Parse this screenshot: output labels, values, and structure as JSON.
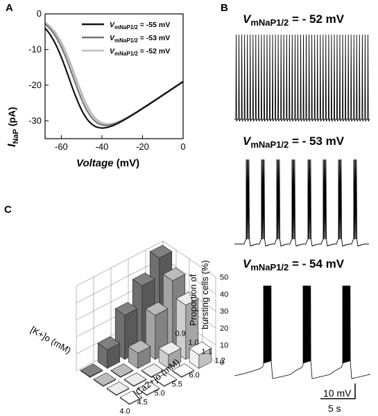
{
  "panels": {
    "a": {
      "letter": "A"
    },
    "b": {
      "letter": "B"
    },
    "c": {
      "letter": "C"
    }
  },
  "chart_data": [
    {
      "panel": "A",
      "type": "line",
      "ylabel_main": "I",
      "ylabel_sub": "NaP",
      "ylabel_unit": " (pA)",
      "xlabel_main": "Voltage",
      "xlabel_unit": " (mV)",
      "xlim": [
        -68,
        0
      ],
      "ylim": [
        -35,
        0
      ],
      "xticks": [
        -60,
        -40,
        -20,
        0
      ],
      "yticks": [
        0,
        -10,
        -20,
        -30
      ],
      "legend": {
        "placement": "top-right",
        "prefix": "V",
        "sub": "mNaP1/2",
        "labels": [
          " = -55 mV",
          " = -53 mV",
          " = -52 mV"
        ]
      },
      "series": [
        {
          "name": "V_mNaP1/2 = -55 mV",
          "color": "#111111",
          "half": -55
        },
        {
          "name": "V_mNaP1/2 = -53 mV",
          "color": "#777777",
          "half": -53
        },
        {
          "name": "V_mNaP1/2 = -52 mV",
          "color": "#bdbdbd",
          "half": -52
        }
      ],
      "x": [
        -68,
        -65,
        -62,
        -60,
        -58,
        -56,
        -54,
        -52,
        -50,
        -48,
        -46,
        -44,
        -42,
        -40,
        -35,
        -30,
        -25,
        -20,
        -15,
        -10,
        -5,
        0
      ]
    },
    {
      "panel": "B",
      "type": "line",
      "traces": [
        {
          "title_prefix": "V",
          "title_sub": "mNaP1/2",
          "title_value": " = - 52 mV",
          "pattern": "tonic spiking"
        },
        {
          "title_prefix": "V",
          "title_sub": "mNaP1/2",
          "title_value": " = - 53 mV",
          "pattern": "bursting"
        },
        {
          "title_prefix": "V",
          "title_sub": "mNaP1/2",
          "title_value": " = - 54 mV",
          "pattern": "bursting"
        }
      ],
      "scalebar": {
        "voltage": "10 mV",
        "time": "5 s"
      }
    },
    {
      "panel": "C",
      "type": "bar3d",
      "zlabel_line1": "Proportion of",
      "zlabel_line2": "bursting cells (%)",
      "xlabel": "[Ca2+]o (mM)",
      "ylabel": "[K+]o (mM)",
      "zlim": [
        0,
        50
      ],
      "zticks": [
        0,
        10,
        20,
        30,
        40,
        50
      ],
      "ca_levels": [
        0.9,
        1.0,
        1.1,
        1.2
      ],
      "ca_tick_labels": [
        "0.9",
        "1.0",
        "1.1",
        "1.2"
      ],
      "k_levels": [
        4.0,
        4.5,
        5.0,
        5.5,
        6.0
      ],
      "k_tick_labels": [
        "4.0",
        "4.5",
        "5.0",
        "5.5",
        "6.0"
      ],
      "bars": [
        {
          "k": 6.0,
          "ca": 1.2,
          "value": 8
        },
        {
          "k": 6.0,
          "ca": 1.1,
          "value": 32
        },
        {
          "k": 6.0,
          "ca": 1.0,
          "value": 41
        },
        {
          "k": 6.0,
          "ca": 0.9,
          "value": 49
        },
        {
          "k": 5.5,
          "ca": 1.2,
          "value": 0
        },
        {
          "k": 5.5,
          "ca": 1.1,
          "value": 8
        },
        {
          "k": 5.5,
          "ca": 1.0,
          "value": 26
        },
        {
          "k": 5.5,
          "ca": 0.9,
          "value": 38
        },
        {
          "k": 5.0,
          "ca": 1.2,
          "value": 0
        },
        {
          "k": 5.0,
          "ca": 1.1,
          "value": 0
        },
        {
          "k": 5.0,
          "ca": 1.0,
          "value": 9
        },
        {
          "k": 5.0,
          "ca": 0.9,
          "value": 26
        },
        {
          "k": 4.5,
          "ca": 1.2,
          "value": 0
        },
        {
          "k": 4.5,
          "ca": 1.1,
          "value": 0
        },
        {
          "k": 4.5,
          "ca": 1.0,
          "value": 0
        },
        {
          "k": 4.5,
          "ca": 0.9,
          "value": 11
        },
        {
          "k": 4.0,
          "ca": 1.2,
          "value": 0
        },
        {
          "k": 4.0,
          "ca": 1.1,
          "value": 0
        },
        {
          "k": 4.0,
          "ca": 1.0,
          "value": 0
        },
        {
          "k": 4.0,
          "ca": 0.9,
          "value": 0
        }
      ],
      "ca_colors": [
        "#6f6f6f",
        "#a3a3a3",
        "#cecece",
        "#f2f2f2"
      ]
    }
  ]
}
